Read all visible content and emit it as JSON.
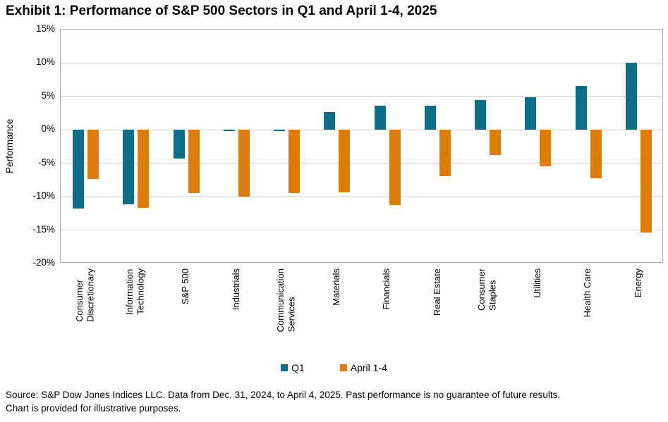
{
  "title": "Exhibit 1: Performance of S&P 500 Sectors in Q1 and April 1-4, 2025",
  "footer": {
    "line1": "Source: S&P Dow Jones Indices LLC. Data from Dec. 31, 2024, to April 4, 2025. Past performance is no guarantee of future results.",
    "line2": "Chart is provided for illustrative purposes."
  },
  "chart_data": {
    "type": "bar",
    "title": "Exhibit 1: Performance of S&P 500 Sectors in Q1 and April 1-4, 2025",
    "xlabel": "",
    "ylabel": "Performance",
    "ylim": [
      -20,
      15
    ],
    "ytick_step": 5,
    "ytick_labels": [
      "15%",
      "10%",
      "5%",
      "0%",
      "-5%",
      "-10%",
      "-15%",
      "-20%"
    ],
    "grid": true,
    "legend_position": "bottom",
    "categories": [
      "Consumer Discretionary",
      "Information Technology",
      "S&P 500",
      "Industrials",
      "Communication Services",
      "Materials",
      "Financials",
      "Real Estate",
      "Consumer Staples",
      "Utilities",
      "Health Care",
      "Energy"
    ],
    "categories_display": [
      "Consumer\nDiscretionary",
      "Information\nTechnology",
      "S&P 500",
      "Industrials",
      "Communication\nServices",
      "Materials",
      "Financials",
      "Real Estate",
      "Consumer\nStaples",
      "Utilities",
      "Health Care",
      "Energy"
    ],
    "series": [
      {
        "name": "Q1",
        "color": "#0B6F87",
        "values": [
          -11.8,
          -11.1,
          -4.3,
          -0.2,
          -0.2,
          2.7,
          3.6,
          3.6,
          4.5,
          4.9,
          6.6,
          10.0
        ]
      },
      {
        "name": "April 1-4",
        "color": "#DE7C0A",
        "values": [
          -7.3,
          -11.7,
          -9.5,
          -10.0,
          -9.5,
          -9.4,
          -11.2,
          -6.9,
          -3.8,
          -5.5,
          -7.2,
          -15.4
        ]
      }
    ],
    "colors": {
      "grid": "#c9c9c9",
      "plot_border": "#a9a9a9",
      "text": "#000000"
    }
  }
}
